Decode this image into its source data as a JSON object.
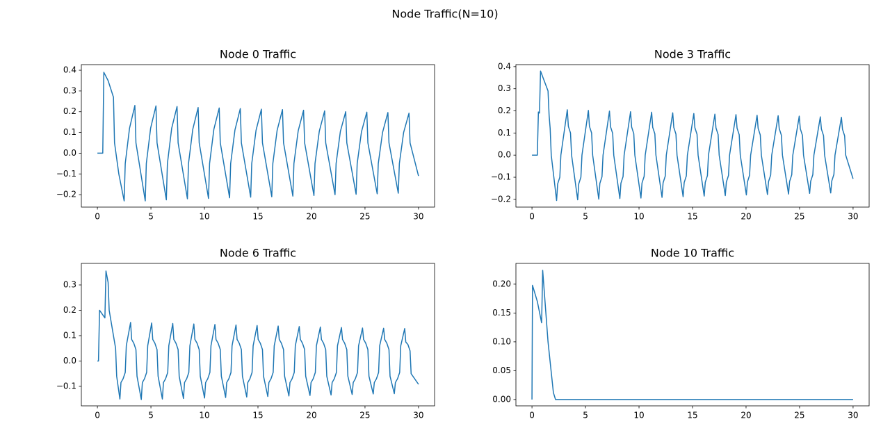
{
  "title": "Node Traffic(N=10)",
  "chart_data": [
    {
      "type": "line",
      "title": "Node 0 Traffic",
      "color": "#1f77b4",
      "x": [
        0,
        0.5,
        0.6,
        1.0,
        1.5,
        1.6,
        2.0,
        2.5,
        2.6,
        3.0,
        3.5,
        3.6,
        4.47,
        4.57,
        4.97,
        5.47,
        5.57,
        6.44,
        6.54,
        6.94,
        7.44,
        7.54,
        8.41,
        8.51,
        8.91,
        9.41,
        9.51,
        10.38,
        10.48,
        10.88,
        11.38,
        11.48,
        12.35,
        12.45,
        12.85,
        13.35,
        13.45,
        14.32,
        14.42,
        14.82,
        15.32,
        15.42,
        16.29,
        16.39,
        16.79,
        17.29,
        17.39,
        18.26,
        18.36,
        18.76,
        19.26,
        19.36,
        20.23,
        20.33,
        20.73,
        21.23,
        21.33,
        22.2,
        22.3,
        22.7,
        23.2,
        23.3,
        24.17,
        24.27,
        24.67,
        25.17,
        25.27,
        26.14,
        26.24,
        26.64,
        27.14,
        27.24,
        28.11,
        28.21,
        28.61,
        29.11,
        29.21,
        30
      ],
      "values": [
        0,
        0,
        0.39,
        0.35,
        0.27,
        0.05,
        -0.1,
        -0.23,
        -0.05,
        0.12,
        0.23,
        0.05,
        -0.23,
        -0.05,
        0.12,
        0.228,
        0.05,
        -0.225,
        -0.05,
        0.12,
        0.225,
        0.05,
        -0.22,
        -0.05,
        0.115,
        0.22,
        0.05,
        -0.218,
        -0.05,
        0.115,
        0.218,
        0.05,
        -0.215,
        -0.05,
        0.112,
        0.215,
        0.05,
        -0.212,
        -0.05,
        0.11,
        0.212,
        0.05,
        -0.21,
        -0.05,
        0.11,
        0.21,
        0.05,
        -0.207,
        -0.05,
        0.108,
        0.207,
        0.05,
        -0.204,
        -0.05,
        0.106,
        0.204,
        0.05,
        -0.2,
        -0.05,
        0.105,
        0.2,
        0.05,
        -0.198,
        -0.05,
        0.103,
        0.198,
        0.05,
        -0.196,
        -0.05,
        0.1,
        0.196,
        0.05,
        -0.193,
        -0.05,
        0.1,
        0.193,
        0.05,
        -0.11
      ],
      "xlim": [
        -1.5,
        31.5
      ],
      "xticks": [
        0,
        5,
        10,
        15,
        20,
        25,
        30
      ],
      "ylim": [
        -0.26,
        0.427
      ],
      "yticks": [
        {
          "value": -0.2,
          "label": "−0.2"
        },
        {
          "value": -0.1,
          "label": "−0.1"
        },
        {
          "value": 0,
          "label": "0.0"
        },
        {
          "value": 0.1,
          "label": "0.1"
        },
        {
          "value": 0.2,
          "label": "0.2"
        },
        {
          "value": 0.3,
          "label": "0.3"
        },
        {
          "value": 0.4,
          "label": "0.4"
        }
      ]
    },
    {
      "type": "line",
      "title": "Node 3 Traffic",
      "color": "#1f77b4",
      "x": [
        0,
        0.5,
        0.6,
        0.7,
        0.8,
        1.5,
        1.6,
        1.7,
        1.8,
        2.3,
        2.4,
        2.6,
        2.7,
        3.3,
        3.4,
        3.6,
        3.7,
        4.27,
        4.37,
        4.57,
        4.67,
        5.27,
        5.37,
        5.57,
        5.67,
        6.24,
        6.34,
        6.54,
        6.64,
        7.24,
        7.34,
        7.54,
        7.64,
        8.21,
        8.31,
        8.51,
        8.61,
        9.21,
        9.31,
        9.51,
        9.61,
        10.18,
        10.28,
        10.48,
        10.58,
        11.18,
        11.28,
        11.48,
        11.58,
        12.15,
        12.25,
        12.45,
        12.55,
        13.15,
        13.25,
        13.45,
        13.55,
        14.12,
        14.22,
        14.42,
        14.52,
        15.12,
        15.22,
        15.42,
        15.52,
        16.09,
        16.19,
        16.39,
        16.49,
        17.09,
        17.19,
        17.39,
        17.49,
        18.06,
        18.16,
        18.36,
        18.46,
        19.06,
        19.16,
        19.36,
        19.46,
        20.03,
        20.13,
        20.33,
        20.43,
        21.03,
        21.13,
        21.33,
        21.43,
        22.0,
        22.1,
        22.3,
        22.4,
        23.0,
        23.1,
        23.3,
        23.4,
        23.97,
        24.07,
        24.27,
        24.37,
        24.97,
        25.07,
        25.27,
        25.37,
        25.94,
        26.04,
        26.24,
        26.34,
        26.94,
        27.04,
        27.24,
        27.34,
        27.91,
        28.01,
        28.21,
        28.31,
        28.91,
        29.01,
        29.21,
        29.31,
        30
      ],
      "values": [
        0,
        0,
        0.195,
        0.19,
        0.38,
        0.29,
        0.18,
        0.12,
        0,
        -0.205,
        -0.13,
        -0.1,
        0,
        0.205,
        0.13,
        0.1,
        0,
        -0.202,
        -0.13,
        -0.1,
        0,
        0.202,
        0.13,
        0.1,
        0,
        -0.199,
        -0.128,
        -0.098,
        0,
        0.199,
        0.128,
        0.098,
        0,
        -0.196,
        -0.127,
        -0.097,
        0,
        0.196,
        0.127,
        0.097,
        0,
        -0.194,
        -0.126,
        -0.096,
        0,
        0.194,
        0.126,
        0.096,
        0,
        -0.191,
        -0.125,
        -0.095,
        0,
        0.191,
        0.125,
        0.095,
        0,
        -0.188,
        -0.124,
        -0.094,
        0,
        0.188,
        0.124,
        0.094,
        0,
        -0.185,
        -0.123,
        -0.093,
        0,
        0.185,
        0.123,
        0.093,
        0,
        -0.183,
        -0.122,
        -0.092,
        0,
        0.183,
        0.122,
        0.092,
        0,
        -0.18,
        -0.121,
        -0.091,
        0,
        0.18,
        0.121,
        0.091,
        0,
        -0.178,
        -0.12,
        -0.09,
        0,
        0.178,
        0.12,
        0.09,
        0,
        -0.176,
        -0.119,
        -0.089,
        0,
        0.176,
        0.119,
        0.089,
        0,
        -0.173,
        -0.118,
        -0.088,
        0,
        0.173,
        0.118,
        0.088,
        0,
        -0.171,
        -0.117,
        -0.087,
        0,
        0.171,
        0.117,
        0.087,
        0,
        -0.107
      ],
      "xlim": [
        -1.5,
        31.5
      ],
      "xticks": [
        0,
        5,
        10,
        15,
        20,
        25,
        30
      ],
      "ylim": [
        -0.235,
        0.409
      ],
      "yticks": [
        {
          "value": -0.2,
          "label": "−0.2"
        },
        {
          "value": -0.1,
          "label": "−0.1"
        },
        {
          "value": 0,
          "label": "0.0"
        },
        {
          "value": 0.1,
          "label": "0.1"
        },
        {
          "value": 0.2,
          "label": "0.2"
        },
        {
          "value": 0.3,
          "label": "0.3"
        },
        {
          "value": 0.4,
          "label": "0.4"
        }
      ]
    },
    {
      "type": "line",
      "title": "Node 6 Traffic",
      "color": "#1f77b4",
      "x": [
        0,
        0.1,
        0.2,
        0.7,
        0.8,
        1.0,
        1.1,
        1.7,
        1.8,
        2.1,
        2.2,
        2.4,
        2.6,
        2.7,
        3.1,
        3.2,
        3.4,
        3.6,
        3.7,
        4.1,
        4.2,
        4.4,
        4.6,
        4.7,
        5.07,
        5.17,
        5.37,
        5.57,
        5.67,
        6.07,
        6.17,
        6.37,
        6.57,
        6.67,
        7.04,
        7.14,
        7.34,
        7.54,
        7.64,
        8.04,
        8.14,
        8.34,
        8.54,
        8.64,
        9.01,
        9.11,
        9.31,
        9.51,
        9.61,
        10.01,
        10.11,
        10.31,
        10.51,
        10.61,
        10.98,
        11.08,
        11.28,
        11.48,
        11.58,
        11.98,
        12.08,
        12.28,
        12.48,
        12.58,
        12.95,
        13.05,
        13.25,
        13.45,
        13.55,
        13.95,
        14.05,
        14.25,
        14.45,
        14.55,
        14.92,
        15.02,
        15.22,
        15.42,
        15.52,
        15.92,
        16.02,
        16.22,
        16.42,
        16.52,
        16.89,
        16.99,
        17.19,
        17.39,
        17.49,
        17.89,
        17.99,
        18.19,
        18.39,
        18.49,
        18.86,
        18.96,
        19.16,
        19.36,
        19.46,
        19.86,
        19.96,
        20.16,
        20.36,
        20.46,
        20.83,
        20.93,
        21.13,
        21.33,
        21.43,
        21.83,
        21.93,
        22.13,
        22.33,
        22.43,
        22.8,
        22.9,
        23.1,
        23.3,
        23.4,
        23.8,
        23.9,
        24.1,
        24.3,
        24.4,
        24.77,
        24.87,
        25.07,
        25.27,
        25.37,
        25.77,
        25.87,
        26.07,
        26.27,
        26.37,
        26.74,
        26.84,
        27.04,
        27.24,
        27.34,
        27.74,
        27.84,
        28.04,
        28.24,
        28.34,
        28.71,
        28.81,
        29.01,
        29.21,
        29.31,
        30
      ],
      "values": [
        0,
        0,
        0.2,
        0.17,
        0.355,
        0.31,
        0.2,
        0.05,
        -0.06,
        -0.15,
        -0.085,
        -0.07,
        -0.045,
        0.06,
        0.152,
        0.085,
        0.07,
        0.045,
        -0.06,
        -0.152,
        -0.085,
        -0.07,
        -0.045,
        0.06,
        0.15,
        0.085,
        0.07,
        0.045,
        -0.06,
        -0.15,
        -0.085,
        -0.07,
        -0.045,
        0.06,
        0.148,
        0.085,
        0.07,
        0.045,
        -0.06,
        -0.148,
        -0.085,
        -0.07,
        -0.045,
        0.06,
        0.146,
        0.085,
        0.07,
        0.045,
        -0.06,
        -0.146,
        -0.085,
        -0.07,
        -0.045,
        0.06,
        0.144,
        0.085,
        0.07,
        0.045,
        -0.06,
        -0.144,
        -0.085,
        -0.07,
        -0.045,
        0.06,
        0.142,
        0.085,
        0.07,
        0.045,
        -0.06,
        -0.142,
        -0.085,
        -0.07,
        -0.045,
        0.06,
        0.14,
        0.085,
        0.07,
        0.045,
        -0.06,
        -0.14,
        -0.085,
        -0.07,
        -0.045,
        0.06,
        0.138,
        0.085,
        0.07,
        0.045,
        -0.06,
        -0.138,
        -0.085,
        -0.07,
        -0.045,
        0.06,
        0.136,
        0.085,
        0.07,
        0.045,
        -0.06,
        -0.136,
        -0.085,
        -0.07,
        -0.045,
        0.06,
        0.134,
        0.085,
        0.07,
        0.045,
        -0.06,
        -0.134,
        -0.085,
        -0.07,
        -0.045,
        0.06,
        0.132,
        0.085,
        0.07,
        0.045,
        -0.06,
        -0.132,
        -0.085,
        -0.07,
        -0.045,
        0.06,
        0.13,
        0.085,
        0.07,
        0.045,
        -0.06,
        -0.13,
        -0.085,
        -0.07,
        -0.045,
        0.06,
        0.129,
        0.085,
        0.07,
        0.045,
        -0.06,
        -0.129,
        -0.085,
        -0.07,
        -0.045,
        0.06,
        0.128,
        0.075,
        0.065,
        0.04,
        -0.05,
        -0.092
      ],
      "xlim": [
        -1.5,
        31.5
      ],
      "xticks": [
        0,
        5,
        10,
        15,
        20,
        25,
        30
      ],
      "ylim": [
        -0.177,
        0.385
      ],
      "yticks": [
        {
          "value": -0.1,
          "label": "−0.1"
        },
        {
          "value": 0,
          "label": "0.0"
        },
        {
          "value": 0.1,
          "label": "0.1"
        },
        {
          "value": 0.2,
          "label": "0.2"
        },
        {
          "value": 0.3,
          "label": "0.3"
        }
      ]
    },
    {
      "type": "line",
      "title": "Node 10 Traffic",
      "color": "#1f77b4",
      "x": [
        0,
        0.05,
        0.5,
        0.9,
        1.0,
        1.5,
        2.0,
        2.2,
        30
      ],
      "values": [
        0,
        0.198,
        0.17,
        0.133,
        0.224,
        0.1,
        0.012,
        0,
        0
      ],
      "xlim": [
        -1.5,
        31.5
      ],
      "xticks": [
        0,
        5,
        10,
        15,
        20,
        25,
        30
      ],
      "ylim": [
        -0.011,
        0.236
      ],
      "yticks": [
        {
          "value": 0,
          "label": "0.00"
        },
        {
          "value": 0.05,
          "label": "0.05"
        },
        {
          "value": 0.1,
          "label": "0.10"
        },
        {
          "value": 0.15,
          "label": "0.15"
        },
        {
          "value": 0.2,
          "label": "0.20"
        }
      ]
    }
  ]
}
